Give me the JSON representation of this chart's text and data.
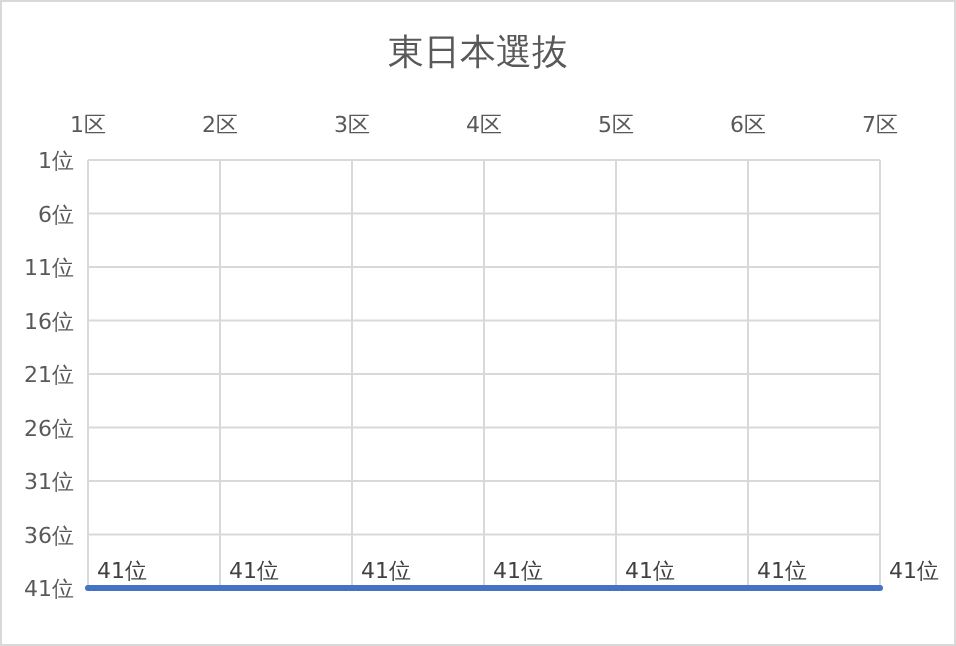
{
  "chart_data": {
    "type": "line",
    "title": "東日本選抜",
    "categories": [
      "1区",
      "2区",
      "3区",
      "4区",
      "5区",
      "6区",
      "7区"
    ],
    "series": [
      {
        "color": "#4472c4",
        "values": [
          41,
          41,
          41,
          41,
          41,
          41,
          41
        ],
        "value_labels": [
          "41位",
          "41位",
          "41位",
          "41位",
          "41位",
          "41位",
          "41位"
        ]
      }
    ],
    "ylim": [
      41,
      1
    ],
    "yticks": [
      {
        "value": 1,
        "label": "1位"
      },
      {
        "value": 6,
        "label": "6位"
      },
      {
        "value": 11,
        "label": "11位"
      },
      {
        "value": 16,
        "label": "16位"
      },
      {
        "value": 21,
        "label": "21位"
      },
      {
        "value": 26,
        "label": "26位"
      },
      {
        "value": 31,
        "label": "31位"
      },
      {
        "value": 36,
        "label": "36位"
      },
      {
        "value": 41,
        "label": "41位"
      }
    ],
    "grid": true,
    "marker": "none",
    "line_style": "solid"
  }
}
